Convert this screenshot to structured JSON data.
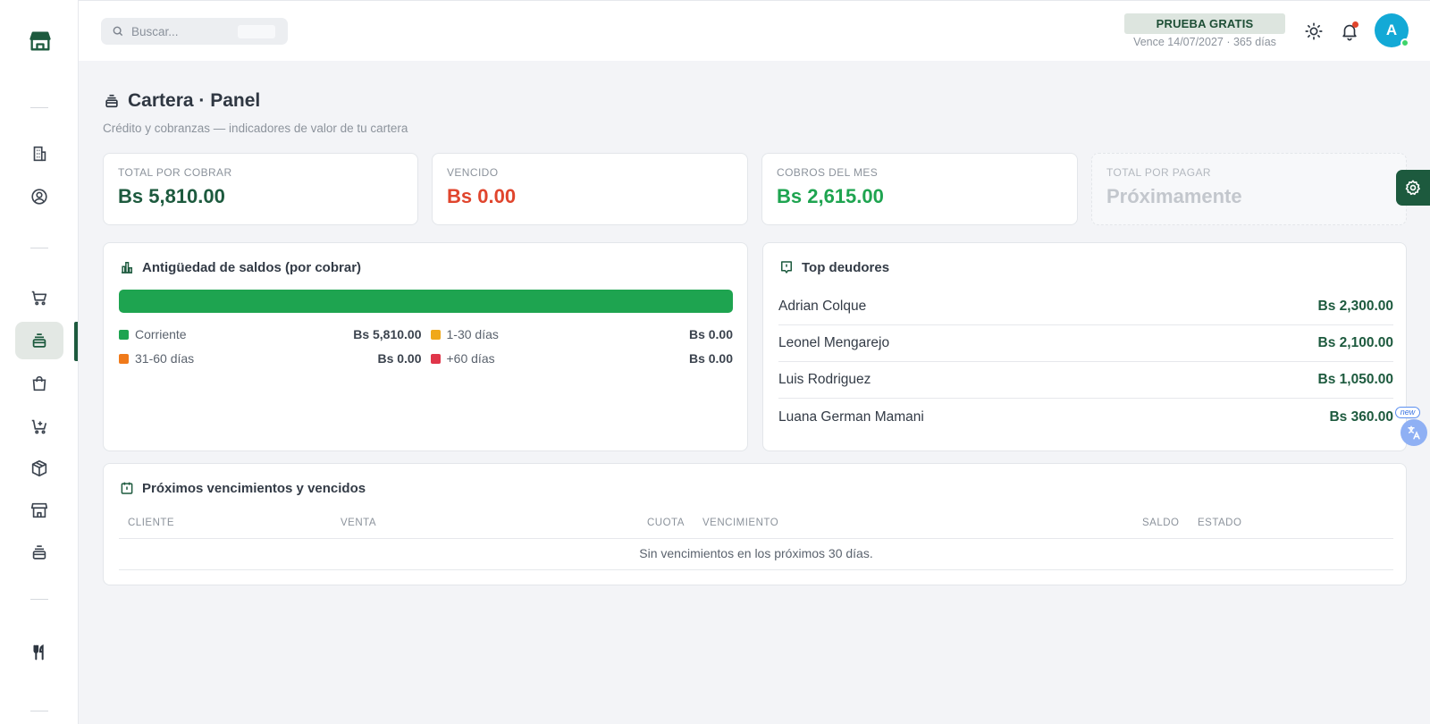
{
  "sidebar": {
    "logo_icon": "storefront-icon",
    "items": [
      {
        "name": "building-icon"
      },
      {
        "name": "user-circle-icon"
      },
      {
        "name": "cart-icon"
      },
      {
        "name": "stack-icon",
        "active": true
      },
      {
        "name": "shopping-bag-icon"
      },
      {
        "name": "cart-plus-icon"
      },
      {
        "name": "box-icon"
      },
      {
        "name": "store-icon"
      },
      {
        "name": "stack-icon"
      },
      {
        "name": "utensils-icon"
      }
    ],
    "active_color": "#1d5a3e"
  },
  "topbar": {
    "search_placeholder": "Buscar...",
    "trial_label": "PRUEBA GRATIS",
    "trial_expiry": "Vence 14/07/2027 · 365 días",
    "avatar_initial": "A"
  },
  "page": {
    "title": "Cartera · Panel",
    "subtitle": "Crédito y cobranzas — indicadores de valor de tu cartera"
  },
  "kpis": [
    {
      "label": "TOTAL POR COBRAR",
      "value": "Bs 5,810.00",
      "color": "#1d5a3e"
    },
    {
      "label": "VENCIDO",
      "value": "Bs 0.00",
      "color": "#e0452d"
    },
    {
      "label": "COBROS DEL MES",
      "value": "Bs 2,615.00",
      "color": "#1ea450"
    },
    {
      "label": "TOTAL POR PAGAR",
      "value": "Próximamente",
      "color": "#c3c7cd"
    }
  ],
  "aging": {
    "title": "Antigüedad de saldos (por cobrar)",
    "bar_fill_fraction": 1.0,
    "buckets": [
      {
        "label": "Corriente",
        "value": "Bs 5,810.00",
        "color": "#1ea450"
      },
      {
        "label": "1-30 días",
        "value": "Bs 0.00",
        "color": "#f0a81a"
      },
      {
        "label": "31-60 días",
        "value": "Bs 0.00",
        "color": "#f07a1a"
      },
      {
        "label": "+60 días",
        "value": "Bs 0.00",
        "color": "#e0354a"
      }
    ]
  },
  "top_debtors": {
    "title": "Top deudores",
    "rows": [
      {
        "name": "Adrian Colque",
        "amount": "Bs 2,300.00"
      },
      {
        "name": "Leonel Mengarejo",
        "amount": "Bs 2,100.00"
      },
      {
        "name": "Luis Rodriguez",
        "amount": "Bs 1,050.00"
      },
      {
        "name": "Luana German Mamani",
        "amount": "Bs 360.00"
      }
    ]
  },
  "due": {
    "title": "Próximos vencimientos y vencidos",
    "columns": [
      "CLIENTE",
      "VENTA",
      "CUOTA",
      "VENCIMIENTO",
      "SALDO",
      "ESTADO"
    ],
    "empty_message": "Sin vencimientos en los próximos 30 días."
  },
  "floating": {
    "new_tag": "new"
  }
}
